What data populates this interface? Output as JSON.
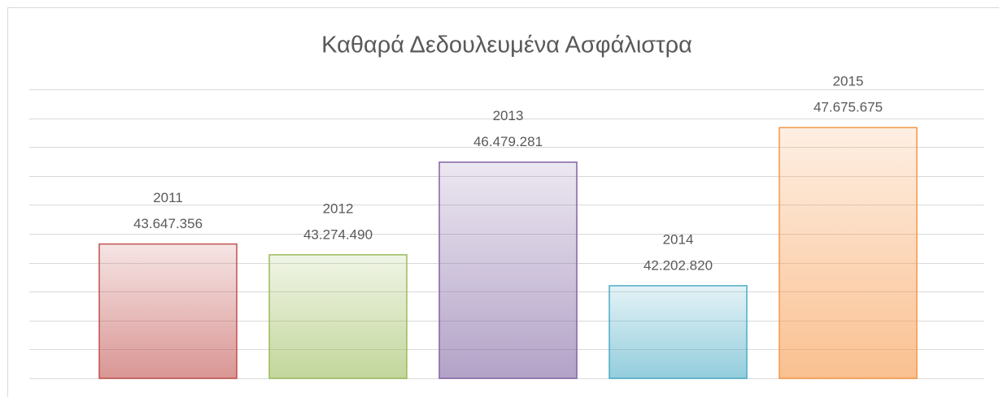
{
  "chart_data": {
    "type": "bar",
    "title": "Καθαρά Δεδουλευμένα Ασφάλιστρα",
    "categories": [
      "2011",
      "2012",
      "2013",
      "2014",
      "2015"
    ],
    "values": [
      43647356,
      43274490,
      46479281,
      42202820,
      47675675
    ],
    "value_labels": [
      "43.647.356",
      "43.274.490",
      "46.479.281",
      "42.202.820",
      "47.675.675"
    ],
    "colors": [
      "#c0504d",
      "#9bbb59",
      "#8064a2",
      "#4bacc6",
      "#f79646"
    ],
    "ylim": [
      39000000,
      49000000
    ],
    "yticks": [
      39000000,
      40000000,
      41000000,
      42000000,
      43000000,
      44000000,
      45000000,
      46000000,
      47000000,
      48000000,
      49000000
    ],
    "grid": true
  }
}
